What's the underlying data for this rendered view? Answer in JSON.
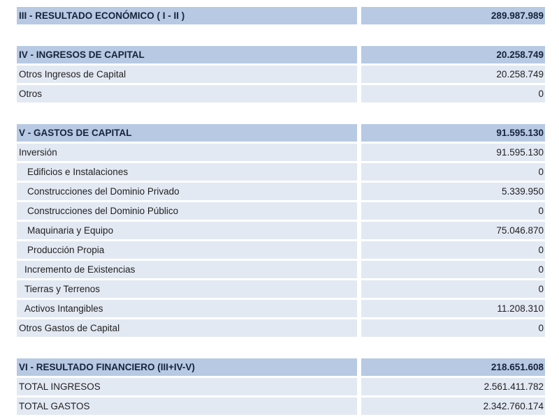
{
  "sections": [
    {
      "header": {
        "label": "III - RESULTADO ECONÓMICO ( I - II )",
        "value": "289.987.989"
      },
      "rows": []
    },
    {
      "header": {
        "label": "IV - INGRESOS DE CAPITAL",
        "value": "20.258.749"
      },
      "rows": [
        {
          "label": "Otros Ingresos de Capital",
          "value": "20.258.749"
        },
        {
          "label": "Otros",
          "value": "0"
        }
      ]
    },
    {
      "header": {
        "label": "V - GASTOS DE CAPITAL",
        "value": "91.595.130"
      },
      "rows": [
        {
          "label": "Inversión",
          "value": "91.595.130"
        },
        {
          "label": "Edificios e Instalaciones",
          "value": "0"
        },
        {
          "label": "Construcciones del Dominio Privado",
          "value": "5.339.950"
        },
        {
          "label": "Construcciones del Dominio Público",
          "value": "0"
        },
        {
          "label": "Maquinaria y Equipo",
          "value": "75.046.870"
        },
        {
          "label": "Producción Propia",
          "value": "0"
        },
        {
          "label": "Incremento de Existencias",
          "value": "0"
        },
        {
          "label": "Tierras y Terrenos",
          "value": "0"
        },
        {
          "label": "Activos Intangibles",
          "value": "11.208.310"
        },
        {
          "label": "Otros Gastos de Capital",
          "value": "0"
        }
      ]
    },
    {
      "header": {
        "label": "VI - RESULTADO FINANCIERO (III+IV-V)",
        "value": "218.651.608"
      },
      "rows": [
        {
          "label": "TOTAL INGRESOS",
          "value": "2.561.411.782"
        },
        {
          "label": "TOTAL GASTOS",
          "value": "2.342.760.174"
        }
      ]
    }
  ]
}
